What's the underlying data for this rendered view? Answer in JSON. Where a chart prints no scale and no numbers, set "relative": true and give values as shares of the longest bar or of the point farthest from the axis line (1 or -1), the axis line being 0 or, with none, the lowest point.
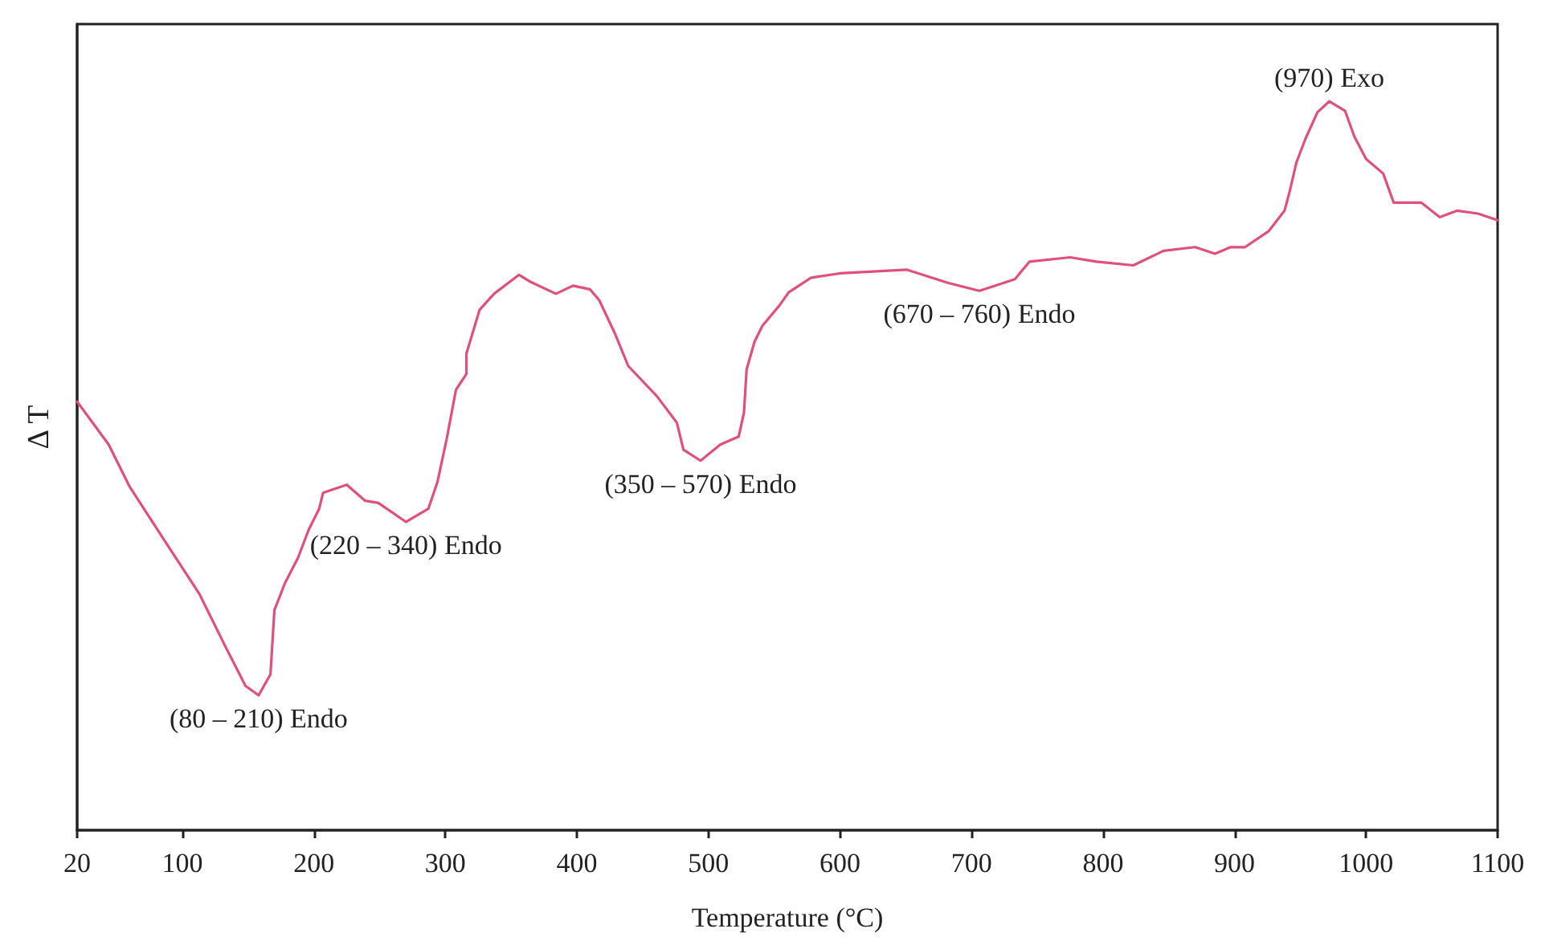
{
  "chart_data": {
    "type": "line",
    "relative": true,
    "xlabel": "Temperature (°C)",
    "ylabel": "Δ T",
    "xlim": [
      20,
      1100
    ],
    "xticks": [
      20,
      100,
      200,
      300,
      400,
      500,
      600,
      700,
      800,
      900,
      1000,
      1100
    ],
    "grid": false,
    "marker": "none",
    "line_style": "solid",
    "series": [
      {
        "color": "#e0507c",
        "x": [
          20,
          44,
          60,
          87,
          113,
          133,
          148,
          158,
          167,
          170,
          178,
          188,
          196,
          204,
          207,
          225,
          239,
          249,
          270,
          287,
          294,
          301,
          308,
          316,
          316,
          326,
          337,
          356,
          364,
          384,
          397,
          410,
          417,
          429,
          439,
          461,
          476,
          481,
          494,
          509,
          523,
          527,
          529,
          535,
          541,
          554,
          561,
          578,
          600,
          651,
          682,
          706,
          733,
          744,
          775,
          795,
          823,
          846,
          870,
          885,
          897,
          908,
          926,
          938,
          942,
          947,
          954,
          963,
          972,
          984,
          991,
          1000,
          1013,
          1021,
          1042,
          1056,
          1069,
          1085,
          1100
        ],
        "values": [
          0.588,
          0.529,
          0.471,
          0.396,
          0.324,
          0.251,
          0.198,
          0.185,
          0.214,
          0.302,
          0.339,
          0.374,
          0.412,
          0.441,
          0.463,
          0.474,
          0.452,
          0.449,
          0.423,
          0.441,
          0.478,
          0.537,
          0.604,
          0.626,
          0.654,
          0.714,
          0.736,
          0.762,
          0.753,
          0.736,
          0.747,
          0.742,
          0.727,
          0.681,
          0.637,
          0.595,
          0.559,
          0.522,
          0.507,
          0.529,
          0.54,
          0.573,
          0.632,
          0.67,
          0.692,
          0.72,
          0.738,
          0.758,
          0.764,
          0.769,
          0.751,
          0.74,
          0.756,
          0.78,
          0.786,
          0.78,
          0.775,
          0.795,
          0.8,
          0.791,
          0.8,
          0.8,
          0.822,
          0.85,
          0.877,
          0.916,
          0.949,
          0.985,
          1,
          0.987,
          0.952,
          0.921,
          0.901,
          0.861,
          0.861,
          0.841,
          0.85,
          0.846,
          0.837
        ]
      }
    ],
    "annotations": [
      {
        "text": "(80 – 210) Endo",
        "x": 158,
        "y": 0.185
      },
      {
        "text": "(220 – 340) Endo",
        "x": 270,
        "y": 0.423
      },
      {
        "text": "(350 – 570) Endo",
        "x": 494,
        "y": 0.507
      },
      {
        "text": "(670 – 760) Endo",
        "x": 706,
        "y": 0.74
      },
      {
        "text": "(970) Exo",
        "x": 972,
        "y": 1
      }
    ]
  }
}
